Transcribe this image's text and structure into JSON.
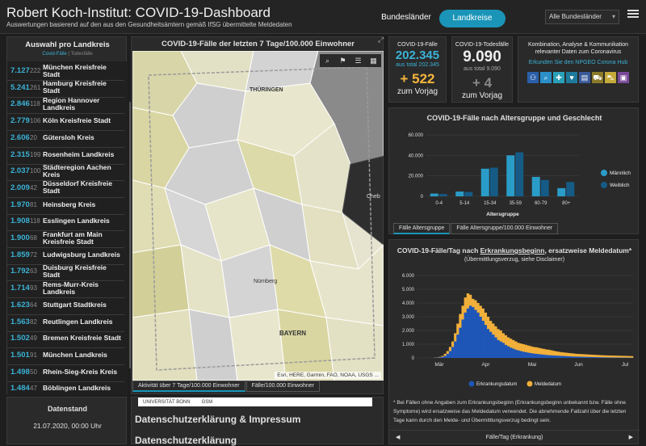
{
  "header": {
    "title": "Robert Koch-Institut: COVID-19-Dashboard",
    "subtitle": "Auswertungen basierend auf den aus den Gesundheitsämtern gemäß IfSG übermittelte Meldedaten",
    "tab_bundeslaender": "Bundesländer",
    "tab_landkreise": "Landkreise",
    "select_value": "Alle Bundesländer"
  },
  "left": {
    "title": "Auswahl pro Landkreis",
    "sub_a": "Covid-Fälle",
    "sub_sep": " | ",
    "sub_b": "Todesfälle",
    "rows": [
      {
        "cases": "7.127",
        "deaths": "222",
        "name": "München Kreisfreie Stadt"
      },
      {
        "cases": "5.241",
        "deaths": "261",
        "name": "Hamburg Kreisfreie Stadt"
      },
      {
        "cases": "2.846",
        "deaths": "118",
        "name": "Region Hannover Landkreis"
      },
      {
        "cases": "2.779",
        "deaths": "106",
        "name": "Köln Kreisfreie Stadt"
      },
      {
        "cases": "2.606",
        "deaths": "20",
        "name": "Gütersloh Kreis"
      },
      {
        "cases": "2.315",
        "deaths": "199",
        "name": "Rosenheim Landkreis"
      },
      {
        "cases": "2.037",
        "deaths": "100",
        "name": "Städteregion Aachen Kreis"
      },
      {
        "cases": "2.009",
        "deaths": "42",
        "name": "Düsseldorf Kreisfreie Stadt"
      },
      {
        "cases": "1.970",
        "deaths": "81",
        "name": "Heinsberg Kreis"
      },
      {
        "cases": "1.908",
        "deaths": "118",
        "name": "Esslingen Landkreis"
      },
      {
        "cases": "1.900",
        "deaths": "68",
        "name": "Frankfurt am Main Kreisfreie Stadt"
      },
      {
        "cases": "1.859",
        "deaths": "72",
        "name": "Ludwigsburg Landkreis"
      },
      {
        "cases": "1.792",
        "deaths": "63",
        "name": "Duisburg Kreisfreie Stadt"
      },
      {
        "cases": "1.714",
        "deaths": "93",
        "name": "Rems-Murr-Kreis Landkreis"
      },
      {
        "cases": "1.623",
        "deaths": "64",
        "name": "Stuttgart Stadtkreis"
      },
      {
        "cases": "1.563",
        "deaths": "82",
        "name": "Reutlingen Landkreis"
      },
      {
        "cases": "1.502",
        "deaths": "49",
        "name": "Bremen Kreisfreie Stadt"
      },
      {
        "cases": "1.501",
        "deaths": "91",
        "name": "München Landkreis"
      },
      {
        "cases": "1.498",
        "deaths": "50",
        "name": "Rhein-Sieg-Kreis Kreis"
      },
      {
        "cases": "1.484",
        "deaths": "47",
        "name": "Böblingen Landkreis"
      }
    ]
  },
  "datenstand": {
    "label": "Datenstand",
    "value": "21.07.2020, 00:00 Uhr"
  },
  "map": {
    "title": "COVID-19-Fälle der letzten 7 Tage/100.000 Einwohner",
    "attribution": "Esri, HERE, Garmin, FAO, NOAA, USGS ...",
    "labels": {
      "thueringen": "THÜRINGEN",
      "bayern": "BAYERN",
      "cheb": "Cheb",
      "nuernberg": "Nürnberg"
    },
    "tab1": "Aktivität über 7 Tage/100.000 Einwohner",
    "tab2": "Fälle/100.000 Einwohner",
    "tools": [
      "search-icon",
      "bookmark-icon",
      "list-icon",
      "grid-icon"
    ]
  },
  "privacy": {
    "h1": "Datenschutzerklärung & Impressum",
    "h2": "Datenschutzerklärung",
    "logo1": "UNIVERSITÄT BONN",
    "logo2": "GSM"
  },
  "kpi": {
    "cases_label": "COVID-19-Fälle",
    "cases_value": "202.345",
    "cases_total": "aus total 202.345",
    "cases_delta": "+ 522",
    "cases_delta_label": "zum Vorjag",
    "deaths_label": "COVID-19-Todesfälle",
    "deaths_value": "9.090",
    "deaths_total": "aus total 9.090",
    "deaths_delta": "+ 4",
    "deaths_delta_label": "zum Vorjag",
    "info_text": "Kombination, Analyse & Kommunikation relevanter Daten zum Coronavirus",
    "info_link": "Erkunden Sie den NPGEO Corona Hub"
  },
  "chart_data": [
    {
      "type": "bar",
      "title": "COVID-19-Fälle nach Altersgruppe und Geschlecht",
      "xlabel": "Altersgruppe",
      "ylabel": "",
      "categories": [
        "0-4",
        "5-14",
        "15-34",
        "35-59",
        "60-79",
        "80+"
      ],
      "ylim": [
        0,
        60000
      ],
      "yticks": [
        "0",
        "20.000",
        "40.000",
        "60.000"
      ],
      "series": [
        {
          "name": "Männlich",
          "color": "#2a9cc8",
          "values": [
            2700,
            4700,
            27000,
            40000,
            19000,
            8000
          ]
        },
        {
          "name": "Weiblich",
          "color": "#155b86",
          "values": [
            2200,
            4300,
            28000,
            43000,
            16000,
            14000
          ]
        }
      ],
      "tabs": [
        "Fälle Altersgruppe",
        "Fälle Altersgruppe/100.000 Einwohner"
      ],
      "legend": "right"
    },
    {
      "type": "area",
      "title_a": "COVID-19-Fälle/Tag nach ",
      "title_b": "Erkrankungsbeginn",
      "title_c": ", ersatzweise Meldedatum*",
      "subtitle": "(Übermittlungsverzug, siehe Disclaimer)",
      "ylim": [
        0,
        6000
      ],
      "yticks": [
        "0",
        "1.000",
        "2.000",
        "3.000",
        "4.000",
        "5.000",
        "6.000"
      ],
      "xticks": [
        "Mär",
        "Apr",
        "Mai",
        "Jun",
        "Jul"
      ],
      "series": [
        {
          "name": "Erkrankungsdatum",
          "color": "#1e56b8",
          "values": [
            0,
            10,
            20,
            40,
            80,
            150,
            300,
            500,
            800,
            1200,
            1700,
            2200,
            2800,
            3300,
            3600,
            3800,
            3700,
            3500,
            3300,
            3000,
            2700,
            2400,
            2100,
            1900,
            1700,
            1500,
            1300,
            1200,
            1100,
            950,
            850,
            750,
            680,
            600,
            550,
            500,
            450,
            420,
            380,
            350,
            320,
            300,
            280,
            260,
            240,
            220,
            200,
            190,
            180,
            170,
            160,
            150,
            140,
            130,
            120,
            110,
            100,
            95,
            90,
            85,
            80,
            75,
            70,
            65,
            60,
            55,
            50,
            45,
            40,
            38,
            35,
            32,
            30,
            28,
            26,
            24,
            22,
            20,
            18,
            16
          ]
        },
        {
          "name": "Meldedatum",
          "color": "#f2b03a",
          "values": [
            0,
            20,
            40,
            80,
            150,
            300,
            500,
            800,
            1200,
            1800,
            2500,
            3200,
            3800,
            4400,
            4700,
            4600,
            4300,
            4200,
            4000,
            3800,
            3600,
            3300,
            3000,
            2700,
            2500,
            2300,
            2100,
            2000,
            1800,
            1650,
            1500,
            1400,
            1300,
            1200,
            1100,
            1050,
            1000,
            950,
            900,
            850,
            800,
            780,
            740,
            700,
            660,
            620,
            600,
            560,
            520,
            480,
            450,
            420,
            400,
            380,
            360,
            340,
            320,
            300,
            290,
            280,
            270,
            260,
            250,
            240,
            230,
            220,
            210,
            200,
            190,
            185,
            180,
            175,
            170,
            165,
            160,
            155,
            150,
            145,
            140,
            130
          ]
        }
      ],
      "note": "* Bei Fällen ohne Angaben zum Erkrankungsbeginn (Erkrankungsbeginn unbekannt bzw. Fälle ohne Symptome) wird ersatzweise das Meldedatum verwendet. Die abnehmende Fallzahl über die letzten Tage kann durch den Melde- und Übermittlungsverzug bedingt sein.",
      "footer": "Fälle/Tag (Erkrankung)"
    }
  ]
}
